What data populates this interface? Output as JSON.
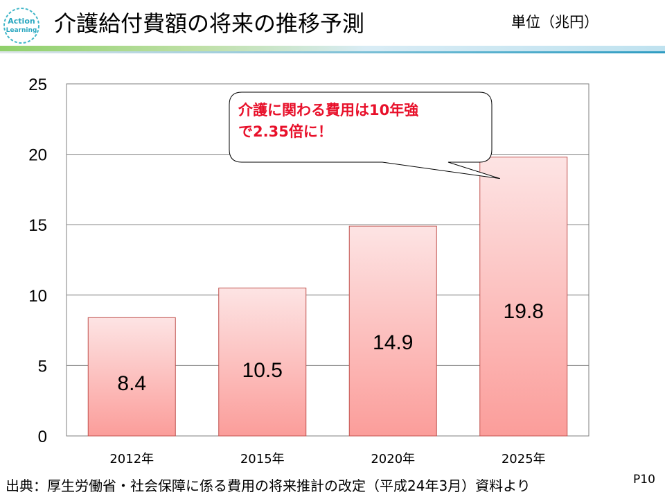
{
  "header": {
    "title": "介護給付費額の将来の推移予測",
    "unit": "単位（兆円）",
    "logo_text": [
      "Action",
      "Learning"
    ]
  },
  "chart_data": {
    "type": "bar",
    "categories": [
      "2012年",
      "2015年",
      "2020年",
      "2025年"
    ],
    "values": [
      8.4,
      10.5,
      14.9,
      19.8
    ],
    "data_labels": [
      "8.4",
      "10.5",
      "14.9",
      "19.8"
    ],
    "ylim": [
      0,
      25
    ],
    "yticks": [
      0,
      5,
      10,
      15,
      20,
      25
    ],
    "grid": true,
    "legend": "none",
    "bar_colors": {
      "top": "#fde4e4",
      "bottom": "#fb9d9a",
      "border": "#c0504d"
    },
    "callout": {
      "lines": [
        "介護に関わる費用は10年強",
        "で2.35倍に！"
      ],
      "color": "#e8102a",
      "points_to": "2025年"
    }
  },
  "footer": {
    "source": "出典：厚生労働省・社会保障に係る費用の将来推計の改定（平成24年3月）資料より",
    "page": "P10"
  }
}
